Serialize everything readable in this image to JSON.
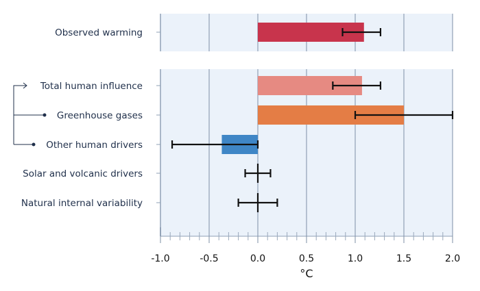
{
  "chart_data": {
    "type": "bar",
    "orientation": "horizontal",
    "title": "",
    "xlabel": "°C",
    "ylabel": "",
    "xlim": [
      -1.0,
      2.0
    ],
    "xticks": [
      -1.0,
      -0.5,
      0.0,
      0.5,
      1.0,
      1.5,
      2.0
    ],
    "xtick_labels": [
      "-1.0",
      "-0.5",
      "0.0",
      "0.5",
      "1.0",
      "1.5",
      "2.0"
    ],
    "grid": true,
    "panels": [
      {
        "name": "observed",
        "categories": [
          "Observed warming"
        ],
        "values": [
          1.09
        ],
        "error_low": [
          0.87
        ],
        "error_high": [
          1.26
        ],
        "colors": [
          "#c8344c"
        ]
      },
      {
        "name": "attributed",
        "categories": [
          "Total human influence",
          "Greenhouse gases",
          "Other human drivers",
          "Solar and volcanic drivers",
          "Natural internal variability"
        ],
        "values": [
          1.07,
          1.5,
          -0.37,
          0.0,
          0.0
        ],
        "error_low": [
          0.77,
          1.0,
          -0.88,
          -0.13,
          -0.2
        ],
        "error_high": [
          1.26,
          2.0,
          0.0,
          0.13,
          0.2
        ],
        "colors": [
          "#e68a82",
          "#e47d45",
          "#3f86c6",
          null,
          null
        ]
      }
    ],
    "bracket": {
      "from": "Total human influence",
      "components": [
        "Greenhouse gases",
        "Other human drivers"
      ]
    }
  }
}
